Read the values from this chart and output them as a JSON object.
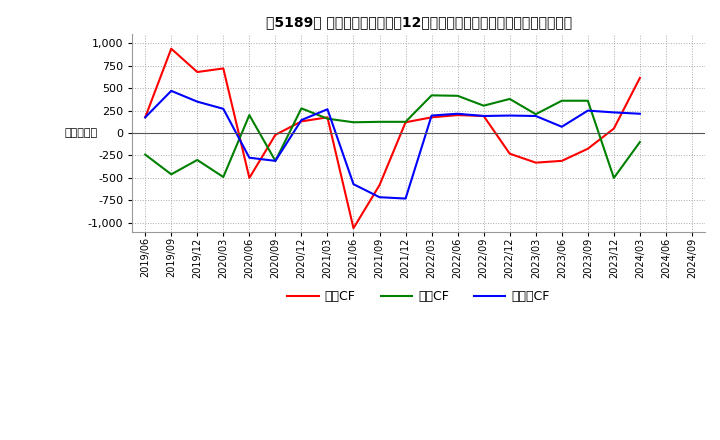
{
  "title": "［5189］ キャッシュフローの12か月移動合計の対前年同期増減額の推移",
  "ylabel": "（百万円）",
  "ylim": [
    -1100,
    1100
  ],
  "yticks": [
    -1000,
    -750,
    -500,
    -250,
    0,
    250,
    500,
    750,
    1000
  ],
  "dates": [
    "2019/06",
    "2019/09",
    "2019/12",
    "2020/03",
    "2020/06",
    "2020/09",
    "2020/12",
    "2021/03",
    "2021/06",
    "2021/09",
    "2021/12",
    "2022/03",
    "2022/06",
    "2022/09",
    "2022/12",
    "2023/03",
    "2023/06",
    "2023/09",
    "2023/12",
    "2024/03",
    "2024/06",
    "2024/09"
  ],
  "eigyo_cf": [
    175,
    940,
    680,
    720,
    -500,
    -20,
    130,
    175,
    -1060,
    -580,
    120,
    175,
    200,
    190,
    -230,
    -330,
    -310,
    -175,
    50,
    615,
    null,
    null
  ],
  "toshi_cf": [
    -240,
    -460,
    -300,
    -490,
    200,
    -310,
    275,
    160,
    120,
    125,
    125,
    420,
    415,
    305,
    380,
    210,
    360,
    360,
    -500,
    -100,
    null,
    null
  ],
  "free_cf": [
    175,
    470,
    350,
    270,
    -275,
    -310,
    145,
    265,
    -570,
    -715,
    -730,
    195,
    215,
    190,
    195,
    190,
    70,
    250,
    230,
    215,
    null,
    null
  ],
  "eigyo_color": "#ff0000",
  "toshi_color": "#008000",
  "free_color": "#0000ff",
  "bg_color": "#ffffff",
  "grid_color": "#aaaaaa",
  "legend_labels": [
    "営業CF",
    "投資CF",
    "フリーCF"
  ]
}
